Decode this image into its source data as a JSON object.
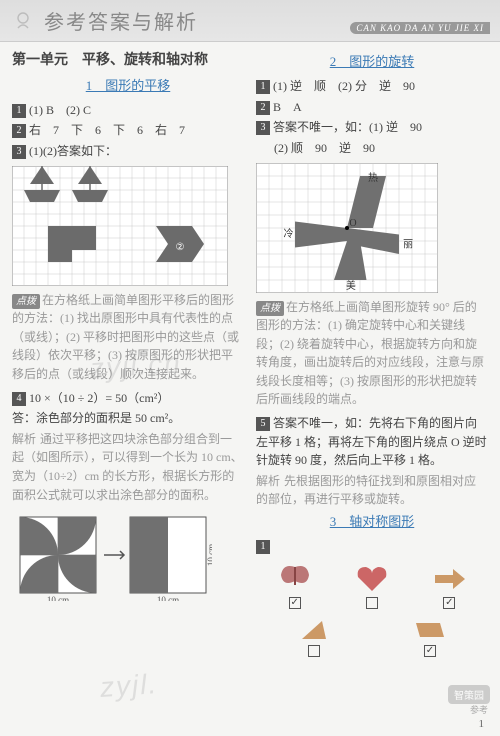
{
  "header": {
    "title": "参考答案与解析",
    "pinyin": "CAN KAO DA AN YU JIE XI"
  },
  "left": {
    "unit_title": "第一单元　平移、旋转和轴对称",
    "s1": {
      "title": "1　图形的平移",
      "q1": "(1) B　(2) C",
      "q2": "右　7　下　6　下　6　右　7",
      "q3": "(1)(2)答案如下：",
      "grid": {
        "cols": 18,
        "rows": 10,
        "cell": 12,
        "grid_color": "#c9c9c9",
        "border_color": "#888",
        "shapes_fill": "#6b6b6b",
        "label2": "②"
      },
      "tip_label": "点拨",
      "tip_text": "在方格纸上画简单图形平移后的图形的方法：(1) 找出原图形中具有代表性的点（或线）；(2) 平移时把图形中的这些点（或线段）依次平移；(3) 按原图形的形状把平移后的点（或线段）顺次连接起来。",
      "q4_expr": "10 ×（10 ÷ 2）= 50（cm²）",
      "q4_ans": "答：涂色部分的面积是 50 cm²。",
      "q4_exp_label": "解析",
      "q4_exp": "通过平移把这四块涂色部分组合到一起（如图所示），可以得到一个长为 10 cm、宽为（10÷2）cm 的长方形，根据长方形的面积公式就可以求出涂色部分的面积。",
      "diagram": {
        "size": 90,
        "outer_color": "#555",
        "fill_color": "#707070",
        "label_10cm": "10 cm"
      }
    }
  },
  "right": {
    "s2": {
      "title": "2　图形的旋转",
      "q1": "(1) 逆　顺　(2) 分　逆　90",
      "q2": "B　A",
      "q3a": "答案不唯一，如：(1) 逆　90",
      "q3b": "(2) 顺　90　逆　90",
      "grid": {
        "cols": 14,
        "rows": 10,
        "cell": 13,
        "grid_color": "#c9c9c9",
        "border_color": "#888",
        "fill": "#707070",
        "center_label": "O",
        "labels": {
          "top": "热",
          "left": "冷",
          "bottom": "美",
          "right": "丽"
        }
      },
      "tip_label": "点拨",
      "tip_text": "在方格纸上画简单图形旋转 90° 后的图形的方法：(1) 确定旋转中心和关键线段；(2) 绕着旋转中心，根据旋转方向和旋转角度，画出旋转后的对应线段，注意与原线段长度相等；(3) 按原图形的形状把旋转后所画线段的端点。",
      "q5": "答案不唯一，如：先将右下角的图片向左平移 1 格；再将左下角的图片绕点 O 逆时针旋转 90 度，然后向上平移 1 格。",
      "q5_exp_label": "解析",
      "q5_exp": "先根据图形的特征找到和原图相对应的部位，再进行平移或旋转。"
    },
    "s3": {
      "title": "3　轴对称图形",
      "checks": [
        "✓",
        "",
        "✓",
        "✓"
      ],
      "checks2": [
        "",
        "✓",
        "",
        ""
      ]
    }
  },
  "watermarks": {
    "wm1": "zyjl.cn",
    "wm2": "",
    "wm3": "zyjl."
  },
  "page_number": "1",
  "badge": "智策园",
  "footer_caption": "参考"
}
